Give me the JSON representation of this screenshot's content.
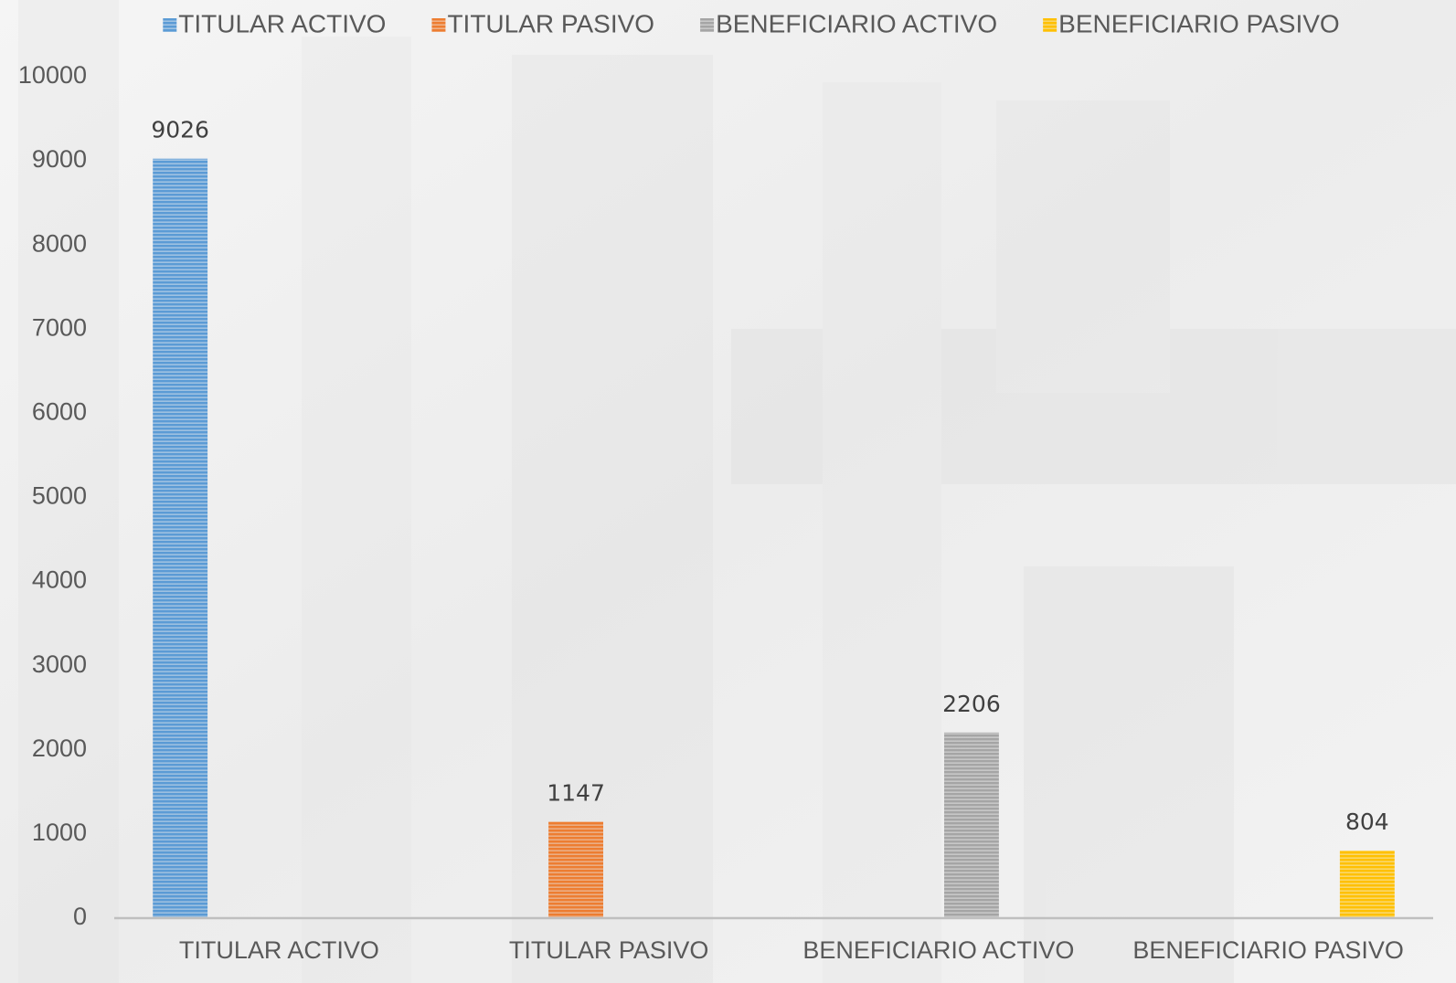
{
  "chart_data": {
    "type": "bar",
    "categories": [
      "TITULAR ACTIVO",
      "TITULAR PASIVO",
      "BENEFICIARIO ACTIVO",
      "BENEFICIARIO PASIVO"
    ],
    "series": [
      {
        "name": "TITULAR ACTIVO",
        "color": "#5b9bd5",
        "values": [
          9026,
          null,
          null,
          null
        ]
      },
      {
        "name": "TITULAR PASIVO",
        "color": "#ed7d31",
        "values": [
          null,
          1147,
          null,
          null
        ]
      },
      {
        "name": "BENEFICIARIO ACTIVO",
        "color": "#a5a5a5",
        "values": [
          null,
          null,
          2206,
          null
        ]
      },
      {
        "name": "BENEFICIARIO PASIVO",
        "color": "#ffc000",
        "values": [
          null,
          null,
          null,
          804
        ]
      }
    ],
    "ylim": [
      0,
      10000
    ],
    "yticks": [
      0,
      1000,
      2000,
      3000,
      4000,
      5000,
      6000,
      7000,
      8000,
      9000,
      10000
    ],
    "grid": false,
    "legend": "top"
  }
}
